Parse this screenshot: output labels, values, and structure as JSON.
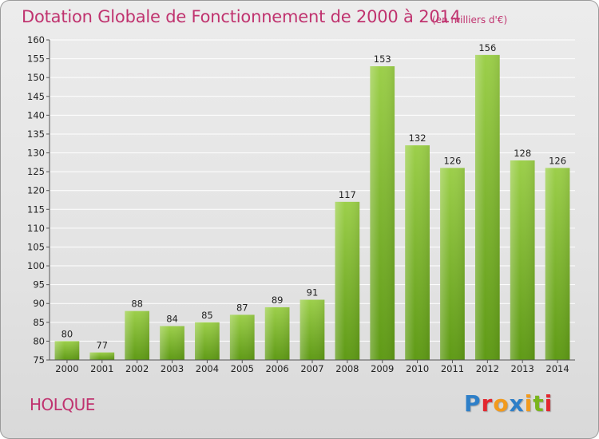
{
  "header": {
    "title": "Dotation Globale de Fonctionnement de 2000 à 2014",
    "subtitle": "(en milliers d'€)"
  },
  "commune": "HOLQUE",
  "logo": {
    "letters": [
      "P",
      "r",
      "o",
      "x",
      "i",
      "t",
      "i"
    ],
    "colors": [
      "#2e7fc8",
      "#e3262e",
      "#f29a1d",
      "#2e7fc8",
      "#f29a1d",
      "#7ab51d",
      "#e3262e"
    ]
  },
  "chart_data": {
    "type": "bar",
    "categories": [
      "2000",
      "2001",
      "2002",
      "2003",
      "2004",
      "2005",
      "2006",
      "2007",
      "2008",
      "2009",
      "2010",
      "2011",
      "2012",
      "2013",
      "2014"
    ],
    "values": [
      80,
      77,
      88,
      84,
      85,
      87,
      89,
      91,
      117,
      153,
      132,
      126,
      156,
      128,
      126
    ],
    "title": "Dotation Globale de Fonctionnement de 2000 à 2014",
    "subtitle": "(en milliers d'€)",
    "ylim": [
      75,
      160
    ],
    "yticks": [
      75,
      80,
      85,
      90,
      95,
      100,
      105,
      110,
      115,
      120,
      125,
      130,
      135,
      140,
      145,
      150,
      155,
      160
    ],
    "grid": true,
    "bar_color_top": "#9ccf4a",
    "bar_color_bottom": "#5f9a16"
  }
}
